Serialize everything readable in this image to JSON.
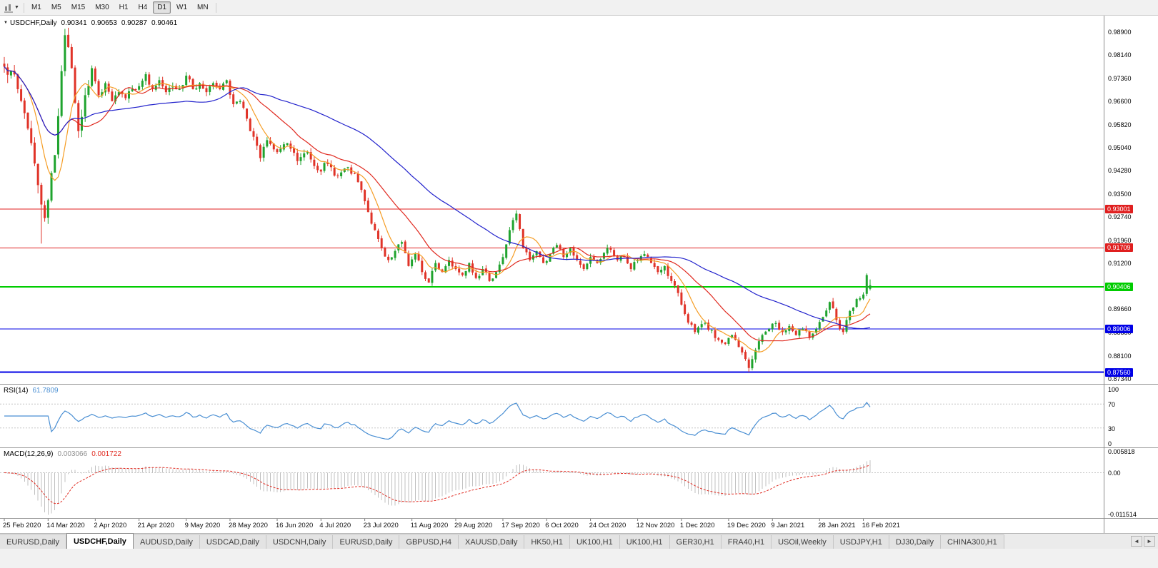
{
  "toolbar": {
    "timeframes": [
      "M1",
      "M5",
      "M15",
      "M30",
      "H1",
      "H4",
      "D1",
      "W1",
      "MN"
    ],
    "active_timeframe": "D1"
  },
  "header": {
    "symbol": "USDCHF,Daily",
    "open": "0.90341",
    "high": "0.90653",
    "low": "0.90287",
    "close": "0.90461"
  },
  "tabs": {
    "items": [
      "EURUSD,Daily",
      "USDCHF,Daily",
      "AUDUSD,Daily",
      "USDCAD,Daily",
      "USDCNH,Daily",
      "EURUSD,Daily",
      "GBPUSD,H4",
      "XAUUSD,Daily",
      "HK50,H1",
      "UK100,H1",
      "UK100,H1",
      "GER30,H1",
      "FRA40,H1",
      "USOil,Weekly",
      "USDJPY,H1",
      "DJ30,Daily",
      "CHINA300,H1"
    ],
    "active_index": 1,
    "scroll_left_icon": "◄",
    "scroll_right_icon": "►"
  },
  "chart_data": {
    "type": "candlestick",
    "symbol": "USDCHF",
    "timeframe": "Daily",
    "bar_count": 258,
    "noise_seed": 7,
    "x_labels": [
      "25 Feb 2020",
      "14 Mar 2020",
      "2 Apr 2020",
      "21 Apr 2020",
      "9 May 2020",
      "28 May 2020",
      "16 Jun 2020",
      "4 Jul 2020",
      "23 Jul 2020",
      "11 Aug 2020",
      "29 Aug 2020",
      "17 Sep 2020",
      "6 Oct 2020",
      "24 Oct 2020",
      "12 Nov 2020",
      "1 Dec 2020",
      "19 Dec 2020",
      "9 Jan 2021",
      "28 Jan 2021",
      "16 Feb 2021"
    ],
    "y_axis": {
      "labels": [
        "0.98900",
        "0.98140",
        "0.97360",
        "0.96600",
        "0.95820",
        "0.95040",
        "0.94280",
        "0.93500",
        "0.92740",
        "0.91960",
        "0.91200",
        "0.90420",
        "0.89660",
        "0.88880",
        "0.88100",
        "0.87340"
      ],
      "range": {
        "top": 0.9945,
        "bottom": 0.8717
      }
    },
    "close_anchors": [
      [
        0,
        0.9775
      ],
      [
        2,
        0.976
      ],
      [
        4,
        0.97
      ],
      [
        6,
        0.962
      ],
      [
        8,
        0.952
      ],
      [
        10,
        0.938
      ],
      [
        12,
        0.927
      ],
      [
        13,
        0.933
      ],
      [
        14,
        0.942
      ],
      [
        15,
        0.948
      ],
      [
        16,
        0.961
      ],
      [
        17,
        0.976
      ],
      [
        18,
        0.988
      ],
      [
        19,
        0.984
      ],
      [
        20,
        0.977
      ],
      [
        22,
        0.956
      ],
      [
        24,
        0.968
      ],
      [
        26,
        0.977
      ],
      [
        28,
        0.968
      ],
      [
        30,
        0.972
      ],
      [
        32,
        0.966
      ],
      [
        34,
        0.969
      ],
      [
        36,
        0.967
      ],
      [
        38,
        0.97
      ],
      [
        40,
        0.971
      ],
      [
        42,
        0.975
      ],
      [
        44,
        0.97
      ],
      [
        46,
        0.973
      ],
      [
        48,
        0.969
      ],
      [
        50,
        0.971
      ],
      [
        52,
        0.97
      ],
      [
        54,
        0.9745
      ],
      [
        56,
        0.97
      ],
      [
        58,
        0.972
      ],
      [
        60,
        0.969
      ],
      [
        62,
        0.972
      ],
      [
        64,
        0.97
      ],
      [
        66,
        0.973
      ],
      [
        68,
        0.965
      ],
      [
        70,
        0.966
      ],
      [
        73,
        0.956
      ],
      [
        76,
        0.947
      ],
      [
        78,
        0.953
      ],
      [
        81,
        0.949
      ],
      [
        84,
        0.952
      ],
      [
        87,
        0.946
      ],
      [
        90,
        0.949
      ],
      [
        93,
        0.943
      ],
      [
        96,
        0.945
      ],
      [
        99,
        0.941
      ],
      [
        102,
        0.944
      ],
      [
        105,
        0.939
      ],
      [
        108,
        0.929
      ],
      [
        110,
        0.923
      ],
      [
        112,
        0.917
      ],
      [
        114,
        0.913
      ],
      [
        116,
        0.916
      ],
      [
        118,
        0.919
      ],
      [
        120,
        0.911
      ],
      [
        122,
        0.915
      ],
      [
        124,
        0.909
      ],
      [
        126,
        0.9055
      ],
      [
        128,
        0.912
      ],
      [
        130,
        0.909
      ],
      [
        132,
        0.913
      ],
      [
        134,
        0.91
      ],
      [
        136,
        0.908
      ],
      [
        138,
        0.912
      ],
      [
        140,
        0.907
      ],
      [
        142,
        0.91
      ],
      [
        144,
        0.906
      ],
      [
        146,
        0.909
      ],
      [
        148,
        0.914
      ],
      [
        150,
        0.923
      ],
      [
        152,
        0.9285
      ],
      [
        154,
        0.917
      ],
      [
        156,
        0.913
      ],
      [
        158,
        0.916
      ],
      [
        160,
        0.912
      ],
      [
        162,
        0.915
      ],
      [
        164,
        0.918
      ],
      [
        166,
        0.914
      ],
      [
        168,
        0.917
      ],
      [
        170,
        0.913
      ],
      [
        172,
        0.91
      ],
      [
        174,
        0.914
      ],
      [
        176,
        0.912
      ],
      [
        179,
        0.917
      ],
      [
        182,
        0.913
      ],
      [
        184,
        0.914
      ],
      [
        186,
        0.91
      ],
      [
        188,
        0.913
      ],
      [
        190,
        0.915
      ],
      [
        192,
        0.912
      ],
      [
        194,
        0.909
      ],
      [
        196,
        0.911
      ],
      [
        198,
        0.906
      ],
      [
        200,
        0.902
      ],
      [
        202,
        0.895
      ],
      [
        205,
        0.889
      ],
      [
        208,
        0.892
      ],
      [
        211,
        0.887
      ],
      [
        214,
        0.885
      ],
      [
        216,
        0.888
      ],
      [
        218,
        0.884
      ],
      [
        220,
        0.88
      ],
      [
        221,
        0.877
      ],
      [
        223,
        0.883
      ],
      [
        225,
        0.888
      ],
      [
        227,
        0.89
      ],
      [
        229,
        0.892
      ],
      [
        231,
        0.889
      ],
      [
        233,
        0.891
      ],
      [
        235,
        0.888
      ],
      [
        237,
        0.89
      ],
      [
        239,
        0.887
      ],
      [
        241,
        0.89
      ],
      [
        243,
        0.894
      ],
      [
        245,
        0.899
      ],
      [
        247,
        0.893
      ],
      [
        249,
        0.889
      ],
      [
        251,
        0.896
      ],
      [
        253,
        0.9
      ],
      [
        255,
        0.9015
      ],
      [
        256,
        0.908
      ],
      [
        257,
        0.90461
      ]
    ],
    "current_bar": {
      "open": 0.90341,
      "high": 0.90653,
      "low": 0.90287,
      "close": 0.90461
    },
    "extremes": {
      "highs": [
        [
          18,
          0.9901
        ],
        [
          152,
          0.9296
        ]
      ],
      "lows": [
        [
          11,
          0.9185
        ],
        [
          221,
          0.8757
        ]
      ]
    },
    "hlines": [
      {
        "price": 0.93001,
        "label": "0.93001",
        "color": "#e01f1f",
        "width": 1
      },
      {
        "price": 0.91709,
        "label": "0.91709",
        "color": "#e01f1f",
        "width": 1
      },
      {
        "price": 0.90406,
        "label": "0.90406",
        "color": "#00cc00",
        "width": 2
      },
      {
        "price": 0.89006,
        "label": "0.89006",
        "color": "#0000e6",
        "width": 1
      },
      {
        "price": 0.8756,
        "label": "0.87560",
        "color": "#0000e6",
        "width": 2
      }
    ],
    "moving_averages": [
      {
        "period": 8,
        "color": "#f59d25"
      },
      {
        "period": 21,
        "color": "#e02a20"
      },
      {
        "period": 55,
        "color": "#2222cc"
      }
    ],
    "candle_colors": {
      "up": "#1fa32e",
      "down": "#e03328"
    },
    "rsi": {
      "title": "RSI(14)",
      "period": 14,
      "display_value": "61.7809",
      "levels": [
        "100",
        "70",
        "30",
        "0"
      ],
      "ylim": [
        0,
        100
      ],
      "color": "#4a8fd3"
    },
    "macd": {
      "title": "MACD(12,26,9)",
      "fast": 12,
      "slow": 26,
      "signal": 9,
      "display_main": "0.003066",
      "display_signal": "0.001722",
      "axis_labels": [
        "0.005818",
        "0.00",
        "-0.011514"
      ],
      "ylim": [
        -0.0125,
        0.0068
      ],
      "hist_color": "#c0c0c0",
      "signal_color": "#e02a20"
    }
  }
}
